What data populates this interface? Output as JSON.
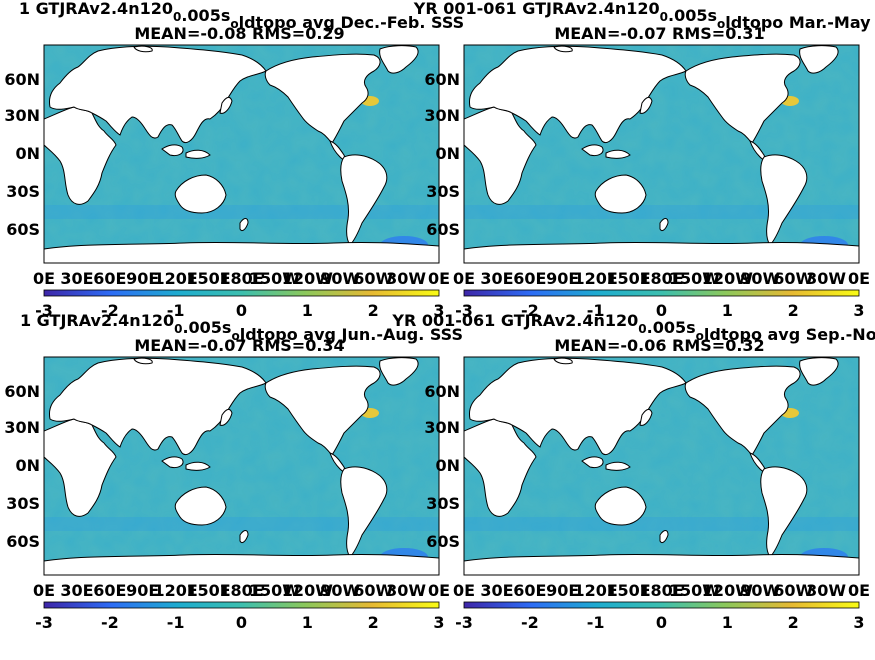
{
  "chart_data": [
    {
      "type": "heatmap",
      "title_line1": "1 GTJRAv2.4n120",
      "title_sub": "0",
      "title_line1b": ".005s",
      "title_sub2": "o",
      "title_line1c": "ldtopo avg Dec.-Feb. SSS",
      "stats": "MEAN=-0.08   RMS=0.29",
      "mean": -0.08,
      "rms": 0.29,
      "y_ticks": [
        "60N",
        "30N",
        "0N",
        "30S",
        "60S"
      ],
      "x_ticks": [
        "0E",
        "30E",
        "60E",
        "90E",
        "120E",
        "150E",
        "180E",
        "150W",
        "120W",
        "90W",
        "60W",
        "30W",
        "0E"
      ],
      "colorbar_ticks": [
        "-3",
        "-2",
        "-1",
        "0",
        "1",
        "2",
        "3"
      ],
      "clim": [
        -3,
        3
      ]
    },
    {
      "type": "heatmap",
      "title_line1": "YR 001-061 GTJRAv2.4n120",
      "title_sub": "0",
      "title_line1b": ".005s",
      "title_sub2": "o",
      "title_line1c": "ldtopo Mar.-May SSS",
      "stats": "MEAN=-0.07   RMS=0.31",
      "mean": -0.07,
      "rms": 0.31,
      "y_ticks": [
        "60N",
        "30N",
        "0N",
        "30S",
        "60S"
      ],
      "x_ticks": [
        "0E",
        "30E",
        "60E",
        "90E",
        "120E",
        "150E",
        "180E",
        "150W",
        "120W",
        "90W",
        "60W",
        "30W",
        "0E"
      ],
      "colorbar_ticks": [
        "-3",
        "-2",
        "-1",
        "0",
        "1",
        "2",
        "3"
      ],
      "clim": [
        -3,
        3
      ]
    },
    {
      "type": "heatmap",
      "title_line1": "1 GTJRAv2.4n120",
      "title_sub": "0",
      "title_line1b": ".005s",
      "title_sub2": "o",
      "title_line1c": "ldtopo avg Jun.-Aug. SSS",
      "stats": "MEAN=-0.07   RMS=0.34",
      "mean": -0.07,
      "rms": 0.34,
      "y_ticks": [
        "60N",
        "30N",
        "0N",
        "30S",
        "60S"
      ],
      "x_ticks": [
        "0E",
        "30E",
        "60E",
        "90E",
        "120E",
        "150E",
        "180E",
        "150W",
        "120W",
        "90W",
        "60W",
        "30W",
        "0E"
      ],
      "colorbar_ticks": [
        "-3",
        "-2",
        "-1",
        "0",
        "1",
        "2",
        "3"
      ],
      "clim": [
        -3,
        3
      ]
    },
    {
      "type": "heatmap",
      "title_line1": "YR 001-061 GTJRAv2.4n120",
      "title_sub": "0",
      "title_line1b": ".005s",
      "title_sub2": "o",
      "title_line1c": "ldtopo avg Sep.-Nov. SSS",
      "stats": "MEAN=-0.06   RMS=0.32",
      "mean": -0.06,
      "rms": 0.32,
      "y_ticks": [
        "60N",
        "30N",
        "0N",
        "30S",
        "60S"
      ],
      "x_ticks": [
        "0E",
        "30E",
        "60E",
        "90E",
        "120E",
        "150E",
        "180E",
        "150W",
        "120W",
        "90W",
        "60W",
        "30W",
        "0E"
      ],
      "colorbar_ticks": [
        "-3",
        "-2",
        "-1",
        "0",
        "1",
        "2",
        "3"
      ],
      "clim": [
        -3,
        3
      ]
    }
  ],
  "colors": {
    "ocean_base": "#3cb0c8",
    "land": "#ffffff",
    "coast": "#000000",
    "colormap": [
      "#3e26a8",
      "#2d6cf5",
      "#1eaccf",
      "#3cbfaf",
      "#8bc85c",
      "#e6b933",
      "#f9fb15"
    ]
  }
}
